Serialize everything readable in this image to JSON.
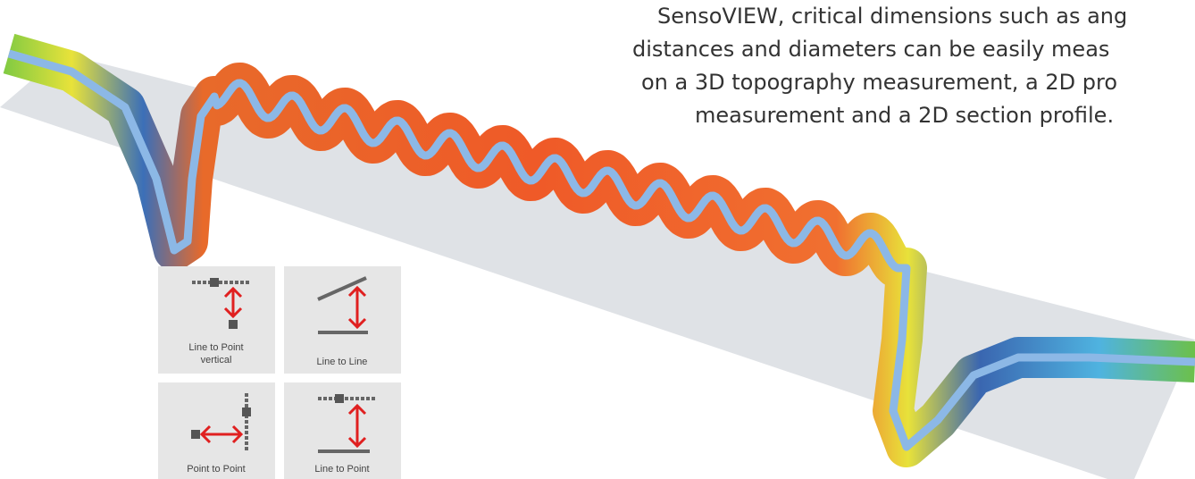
{
  "description": {
    "lines": [
      "SensoVIEW, critical dimensions such as ang",
      "distances and diameters can be easily meas",
      "on a 3D topography measurement, a 2D pro",
      "measurement and a 2D section profile."
    ]
  },
  "tools": [
    {
      "label_lines": [
        "Line to Point",
        "vertical"
      ]
    },
    {
      "label_lines": [
        "Line to Line"
      ]
    },
    {
      "label_lines": [
        "Point to Point"
      ]
    },
    {
      "label_lines": [
        "Line to Point"
      ]
    }
  ]
}
